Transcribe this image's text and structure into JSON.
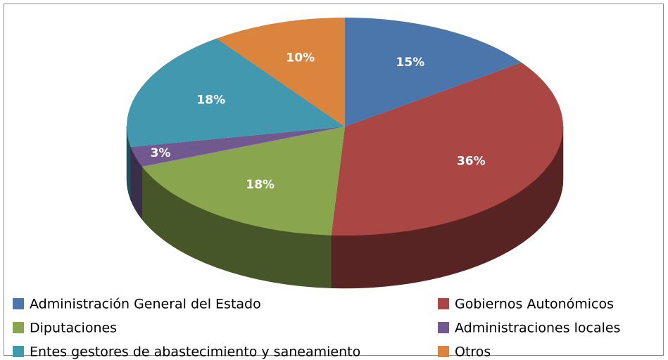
{
  "chart_data": {
    "type": "pie3d",
    "categories": [
      "Administración General del Estado",
      "Gobiernos Autonómicos",
      "Diputaciones",
      "Administraciones locales",
      "Entes gestores de abastecimiento y saneamiento",
      "Otros"
    ],
    "values": [
      15,
      36,
      18,
      3,
      18,
      10
    ],
    "value_labels": [
      "15%",
      "36%",
      "18%",
      "3%",
      "18%",
      "10%"
    ],
    "colors": [
      "#4a76ab",
      "#aa4644",
      "#89a54e",
      "#71588f",
      "#4198af",
      "#db843d"
    ],
    "legend": "bottom"
  }
}
